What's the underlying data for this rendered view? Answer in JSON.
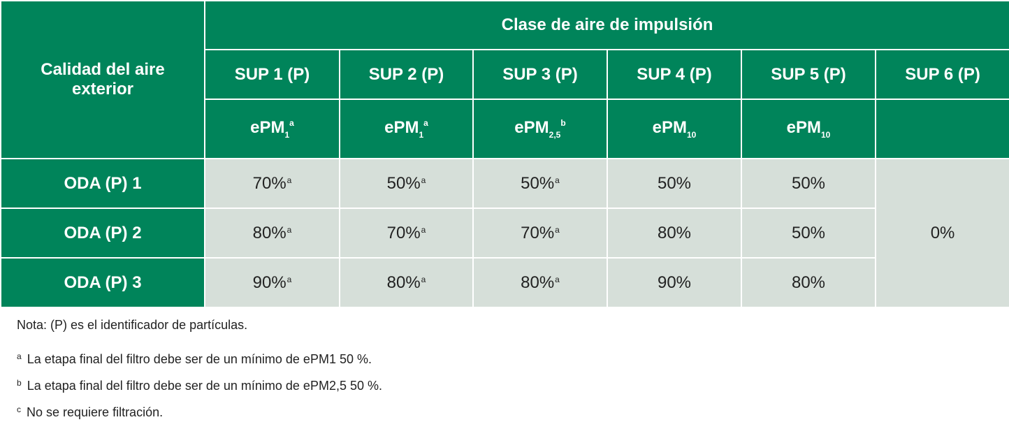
{
  "table": {
    "corner_header": "Calidad del aire exterior",
    "group_header": "Clase de aire de impulsión",
    "columns": [
      "SUP 1 (P)",
      "SUP 2 (P)",
      "SUP 3 (P)",
      "SUP 4 (P)",
      "SUP 5 (P)",
      "SUP 6 (P)"
    ],
    "pm_classes": [
      {
        "base": "ePM",
        "sub": "1",
        "sup": "a"
      },
      {
        "base": "ePM",
        "sub": "1",
        "sup": "a"
      },
      {
        "base": "ePM",
        "sub": "2,5",
        "sup": "b"
      },
      {
        "base": "ePM",
        "sub": "10",
        "sup": ""
      },
      {
        "base": "ePM",
        "sub": "10",
        "sup": ""
      },
      {
        "base": "",
        "sub": "",
        "sup": ""
      }
    ],
    "rows": [
      {
        "label": "ODA (P) 1",
        "values": [
          "70%",
          "50%",
          "50%",
          "50%",
          "50%"
        ],
        "marks": [
          "a",
          "a",
          "a",
          "",
          ""
        ]
      },
      {
        "label": "ODA (P) 2",
        "values": [
          "80%",
          "70%",
          "70%",
          "80%",
          "50%"
        ],
        "marks": [
          "a",
          "a",
          "a",
          "",
          ""
        ]
      },
      {
        "label": "ODA (P) 3",
        "values": [
          "90%",
          "80%",
          "80%",
          "90%",
          "80%"
        ],
        "marks": [
          "a",
          "a",
          "a",
          "",
          ""
        ]
      }
    ],
    "sup6_value": "0%"
  },
  "notes": {
    "nota": "Nota: (P) es el identificador de partículas.",
    "footnotes": [
      {
        "mark": "a",
        "text": "La etapa final del filtro debe ser de un mínimo de ePM1 50 %."
      },
      {
        "mark": "b",
        "text": "La etapa final del filtro debe ser de un mínimo de ePM2,5 50 %."
      },
      {
        "mark": "c",
        "text": "No se requiere filtración."
      }
    ]
  },
  "colors": {
    "header_green": "#00845a",
    "cell_gray": "#d6dfd9",
    "text": "#222222"
  }
}
